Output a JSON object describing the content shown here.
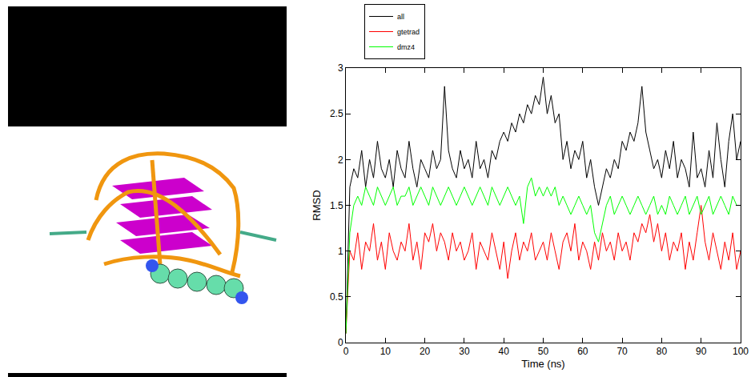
{
  "chart_data": {
    "type": "line",
    "x_label": "Time (ns)",
    "y_label": "RMSD",
    "x": [
      0,
      1,
      2,
      3,
      4,
      5,
      6,
      7,
      8,
      9,
      10,
      11,
      12,
      13,
      14,
      15,
      16,
      17,
      18,
      19,
      20,
      21,
      22,
      23,
      24,
      25,
      26,
      27,
      28,
      29,
      30,
      31,
      32,
      33,
      34,
      35,
      36,
      37,
      38,
      39,
      40,
      41,
      42,
      43,
      44,
      45,
      46,
      47,
      48,
      49,
      50,
      51,
      52,
      53,
      54,
      55,
      56,
      57,
      58,
      59,
      60,
      61,
      62,
      63,
      64,
      65,
      66,
      67,
      68,
      69,
      70,
      71,
      72,
      73,
      74,
      75,
      76,
      77,
      78,
      79,
      80,
      81,
      82,
      83,
      84,
      85,
      86,
      87,
      88,
      89,
      90,
      91,
      92,
      93,
      94,
      95,
      96,
      97,
      98,
      99,
      100
    ],
    "series": [
      {
        "name": "all",
        "color": "#000000",
        "values": [
          0.1,
          1.7,
          1.9,
          1.8,
          2.1,
          1.7,
          2.0,
          1.8,
          2.2,
          1.9,
          1.8,
          2.0,
          1.7,
          2.1,
          1.9,
          1.8,
          2.2,
          1.9,
          1.7,
          2.0,
          1.9,
          1.8,
          2.1,
          1.9,
          2.0,
          2.8,
          2.1,
          1.9,
          1.8,
          2.1,
          1.9,
          2.0,
          1.8,
          2.2,
          1.9,
          2.0,
          1.8,
          2.1,
          2.0,
          2.2,
          2.3,
          2.2,
          2.4,
          2.3,
          2.5,
          2.4,
          2.6,
          2.5,
          2.7,
          2.6,
          2.9,
          2.5,
          2.7,
          2.4,
          2.5,
          2.0,
          2.2,
          1.9,
          2.1,
          2.0,
          2.2,
          1.8,
          2.0,
          1.7,
          1.5,
          1.7,
          1.9,
          1.8,
          2.0,
          1.9,
          2.2,
          2.1,
          2.3,
          2.2,
          2.4,
          2.8,
          2.3,
          2.1,
          1.9,
          2.0,
          1.8,
          2.1,
          1.9,
          2.2,
          1.8,
          2.0,
          1.9,
          1.7,
          2.3,
          1.8,
          1.9,
          1.7,
          2.1,
          1.8,
          2.4,
          2.0,
          1.7,
          2.2,
          2.5,
          2.0,
          2.2
        ]
      },
      {
        "name": "gtetrad",
        "color": "#ff0000",
        "values": [
          0.1,
          1.0,
          0.9,
          1.2,
          0.8,
          1.1,
          1.0,
          1.3,
          0.9,
          1.1,
          0.8,
          1.2,
          1.0,
          0.9,
          1.1,
          1.0,
          1.3,
          0.9,
          1.1,
          0.8,
          1.2,
          1.1,
          1.3,
          1.0,
          1.2,
          1.1,
          0.9,
          1.2,
          1.0,
          1.1,
          0.9,
          1.0,
          1.2,
          0.8,
          1.1,
          1.0,
          0.9,
          1.2,
          1.0,
          0.8,
          1.1,
          0.7,
          1.0,
          1.2,
          0.9,
          1.1,
          1.0,
          1.2,
          0.9,
          1.0,
          1.1,
          0.9,
          1.2,
          1.0,
          0.8,
          1.1,
          1.2,
          1.0,
          1.3,
          0.9,
          1.1,
          1.0,
          0.8,
          1.1,
          0.9,
          1.2,
          1.0,
          1.1,
          0.9,
          1.2,
          1.0,
          1.1,
          0.9,
          1.2,
          1.1,
          1.3,
          1.2,
          1.4,
          1.1,
          1.3,
          1.0,
          1.2,
          0.9,
          1.1,
          1.0,
          1.2,
          0.8,
          1.1,
          0.9,
          1.2,
          1.5,
          1.1,
          0.9,
          1.2,
          1.0,
          0.8,
          1.1,
          0.9,
          1.2,
          0.8,
          1.0
        ]
      },
      {
        "name": "dmz4",
        "color": "#00ff00",
        "values": [
          0.1,
          1.2,
          1.5,
          1.6,
          1.5,
          1.7,
          1.6,
          1.5,
          1.7,
          1.6,
          1.5,
          1.6,
          1.7,
          1.5,
          1.6,
          1.6,
          1.7,
          1.5,
          1.6,
          1.7,
          1.6,
          1.5,
          1.7,
          1.6,
          1.5,
          1.6,
          1.7,
          1.6,
          1.5,
          1.6,
          1.7,
          1.6,
          1.5,
          1.6,
          1.7,
          1.6,
          1.5,
          1.7,
          1.6,
          1.5,
          1.6,
          1.7,
          1.6,
          1.5,
          1.6,
          1.3,
          1.7,
          1.8,
          1.6,
          1.7,
          1.6,
          1.7,
          1.6,
          1.7,
          1.5,
          1.6,
          1.5,
          1.4,
          1.5,
          1.6,
          1.5,
          1.4,
          1.5,
          1.2,
          1.1,
          1.3,
          1.5,
          1.6,
          1.4,
          1.5,
          1.6,
          1.5,
          1.4,
          1.5,
          1.6,
          1.5,
          1.4,
          1.5,
          1.6,
          1.4,
          1.5,
          1.4,
          1.6,
          1.5,
          1.4,
          1.5,
          1.6,
          1.4,
          1.5,
          1.6,
          1.4,
          1.5,
          1.6,
          1.4,
          1.5,
          1.6,
          1.5,
          1.4,
          1.6,
          1.5,
          1.5
        ]
      }
    ],
    "xlim": [
      0,
      100
    ],
    "xticks": [
      0,
      10,
      20,
      30,
      40,
      50,
      60,
      70,
      80,
      90,
      100
    ],
    "ylim": [
      0,
      3
    ],
    "yticks": [
      0,
      0.5,
      1,
      1.5,
      2,
      2.5,
      3
    ],
    "legend": "top left",
    "grid": false
  }
}
